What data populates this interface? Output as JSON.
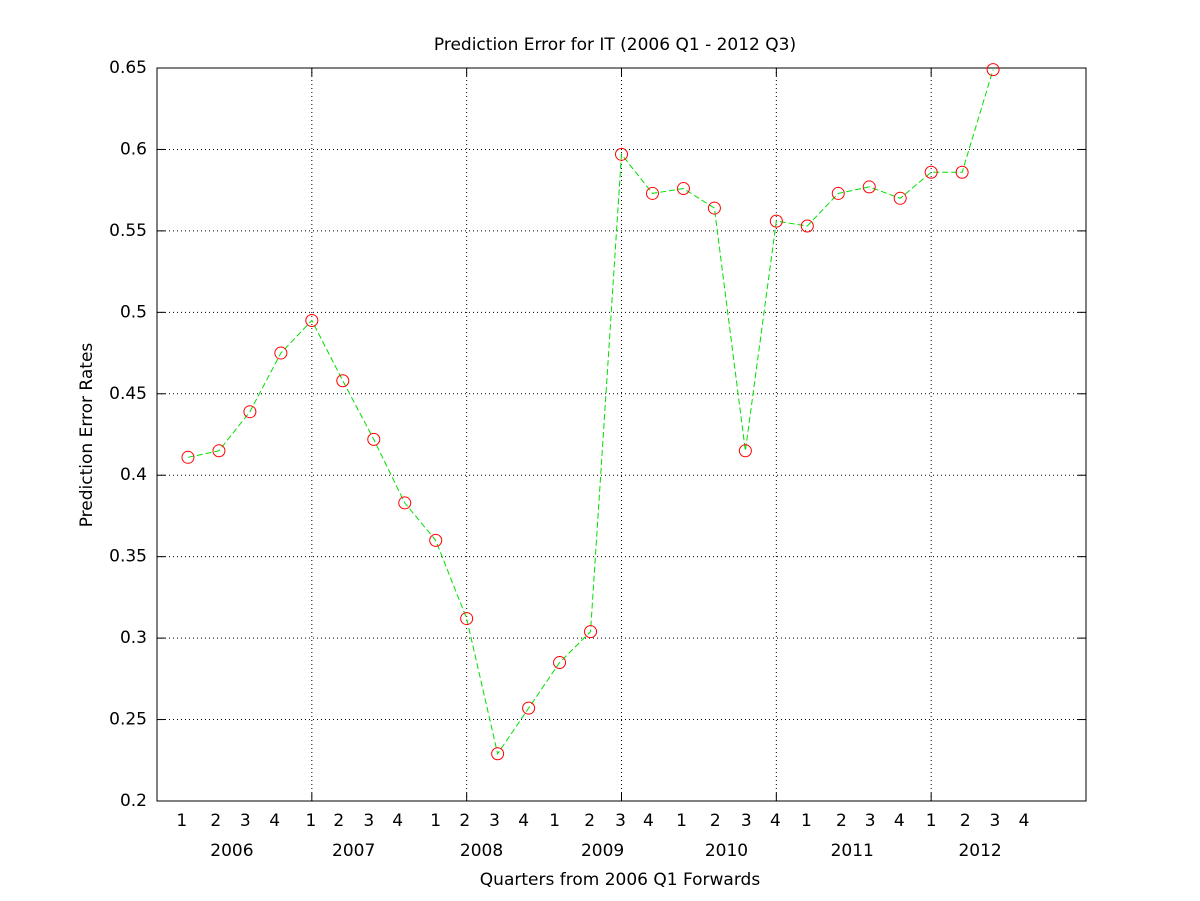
{
  "chart_data": {
    "type": "line",
    "title": "Prediction Error for IT (2006 Q1 - 2012 Q3)",
    "xlabel": "Quarters from 2006 Q1 Forwards",
    "ylabel": "Prediction Error Rates",
    "x": [
      1,
      2,
      3,
      4,
      5,
      6,
      7,
      8,
      9,
      10,
      11,
      12,
      13,
      14,
      15,
      16,
      17,
      18,
      19,
      20,
      21,
      22,
      23,
      24,
      25,
      26,
      27
    ],
    "series": [
      {
        "color": "#00e000",
        "marker_color": "#ff0000",
        "values": [
          0.411,
          0.415,
          0.439,
          0.475,
          0.495,
          0.458,
          0.422,
          0.383,
          0.36,
          0.312,
          0.229,
          0.257,
          0.285,
          0.304,
          0.597,
          0.573,
          0.576,
          0.564,
          0.415,
          0.556,
          0.553,
          0.573,
          0.577,
          0.57,
          0.586,
          0.586,
          0.649
        ]
      }
    ],
    "xlim": [
      0,
      30
    ],
    "ylim": [
      0.2,
      0.65
    ],
    "yticks": [
      0.2,
      0.25,
      0.3,
      0.35,
      0.4,
      0.45,
      0.5,
      0.55,
      0.6,
      0.65
    ],
    "xgrid": [
      5,
      10,
      15,
      20,
      25
    ],
    "xticks": [
      {
        "value": 0.8,
        "label": "1"
      },
      {
        "value": 1.9,
        "label": "2"
      },
      {
        "value": 2.85,
        "label": "3"
      },
      {
        "value": 3.8,
        "label": "4"
      },
      {
        "value": 4.97,
        "label": "1"
      },
      {
        "value": 5.87,
        "label": "2"
      },
      {
        "value": 6.84,
        "label": "3"
      },
      {
        "value": 7.77,
        "label": "4"
      },
      {
        "value": 9.0,
        "label": "1"
      },
      {
        "value": 9.94,
        "label": "2"
      },
      {
        "value": 10.9,
        "label": "3"
      },
      {
        "value": 11.84,
        "label": "4"
      },
      {
        "value": 12.84,
        "label": "1"
      },
      {
        "value": 13.97,
        "label": "2"
      },
      {
        "value": 14.97,
        "label": "3"
      },
      {
        "value": 15.87,
        "label": "4"
      },
      {
        "value": 16.94,
        "label": "1"
      },
      {
        "value": 18.03,
        "label": "2"
      },
      {
        "value": 19.03,
        "label": "3"
      },
      {
        "value": 19.97,
        "label": "4"
      },
      {
        "value": 20.97,
        "label": "1"
      },
      {
        "value": 22.1,
        "label": "2"
      },
      {
        "value": 23.03,
        "label": "3"
      },
      {
        "value": 23.97,
        "label": "4"
      },
      {
        "value": 25.0,
        "label": "1"
      },
      {
        "value": 26.1,
        "label": "2"
      },
      {
        "value": 27.06,
        "label": "3"
      },
      {
        "value": 28.0,
        "label": "4"
      }
    ],
    "year_labels": [
      {
        "value": 2.42,
        "label": "2006"
      },
      {
        "value": 6.35,
        "label": "2007"
      },
      {
        "value": 10.48,
        "label": "2008"
      },
      {
        "value": 14.39,
        "label": "2009"
      },
      {
        "value": 18.39,
        "label": "2010"
      },
      {
        "value": 22.45,
        "label": "2011"
      },
      {
        "value": 26.58,
        "label": "2012"
      }
    ],
    "grid": true
  }
}
